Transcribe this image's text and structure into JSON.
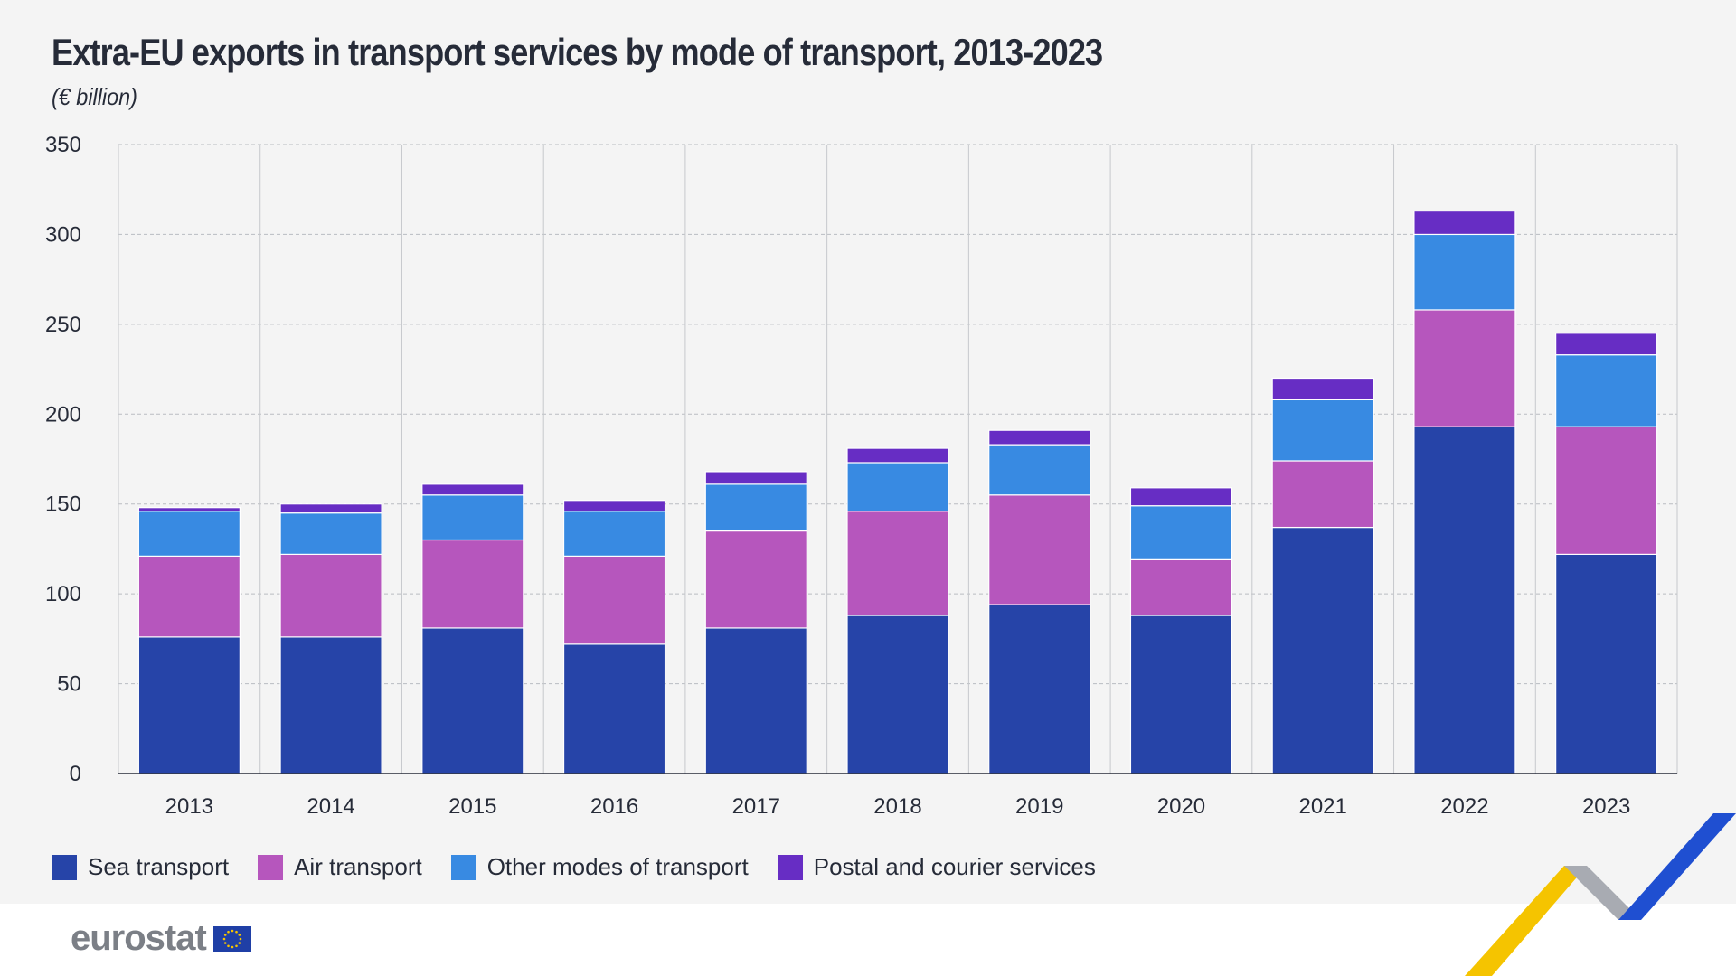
{
  "chart_data": {
    "type": "bar",
    "stacked": true,
    "title": "Extra-EU exports in transport services by mode of transport, 2013-2023",
    "subtitle": "(€ billion)",
    "categories": [
      "2013",
      "2014",
      "2015",
      "2016",
      "2017",
      "2018",
      "2019",
      "2020",
      "2021",
      "2022",
      "2023"
    ],
    "series": [
      {
        "name": "Sea transport",
        "color": "#2644a8",
        "values": [
          76,
          76,
          81,
          72,
          81,
          88,
          94,
          88,
          137,
          193,
          122
        ]
      },
      {
        "name": "Air transport",
        "color": "#b656bd",
        "values": [
          45,
          46,
          49,
          49,
          54,
          58,
          61,
          31,
          37,
          65,
          71
        ]
      },
      {
        "name": "Other modes of transport",
        "color": "#388ae2",
        "values": [
          25,
          23,
          25,
          25,
          26,
          27,
          28,
          30,
          34,
          42,
          40
        ]
      },
      {
        "name": "Postal and courier services",
        "color": "#672dc4",
        "values": [
          2,
          5,
          6,
          6,
          7,
          8,
          8,
          10,
          12,
          13,
          12
        ]
      }
    ],
    "yticks": [
      0,
      50,
      100,
      150,
      200,
      250,
      300,
      350
    ],
    "ylim": [
      0,
      350
    ],
    "grid": true,
    "legend_position": "bottom-left"
  },
  "branding": {
    "logo_text": "eurostat",
    "logo_icon": "eu-flag-icon",
    "decor_colors": [
      "#f5c400",
      "#a8abb2",
      "#1f4fd1"
    ]
  }
}
